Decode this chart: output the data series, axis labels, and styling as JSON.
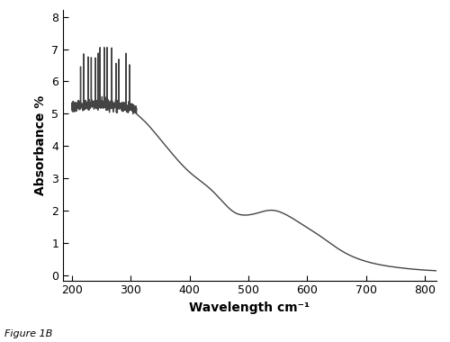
{
  "title": "",
  "xlabel": "Wavelength cm⁻¹",
  "ylabel": "Absorbance %",
  "figure_label": "Figure 1B",
  "xlim": [
    185,
    820
  ],
  "ylim": [
    -0.15,
    8.2
  ],
  "xticks": [
    200,
    300,
    400,
    500,
    600,
    700,
    800
  ],
  "yticks": [
    0,
    1,
    2,
    3,
    4,
    5,
    6,
    7,
    8
  ],
  "line_color": "#444444",
  "line_width": 1.0,
  "background_color": "#ffffff",
  "figsize": [
    5.0,
    3.8
  ],
  "dpi": 100
}
